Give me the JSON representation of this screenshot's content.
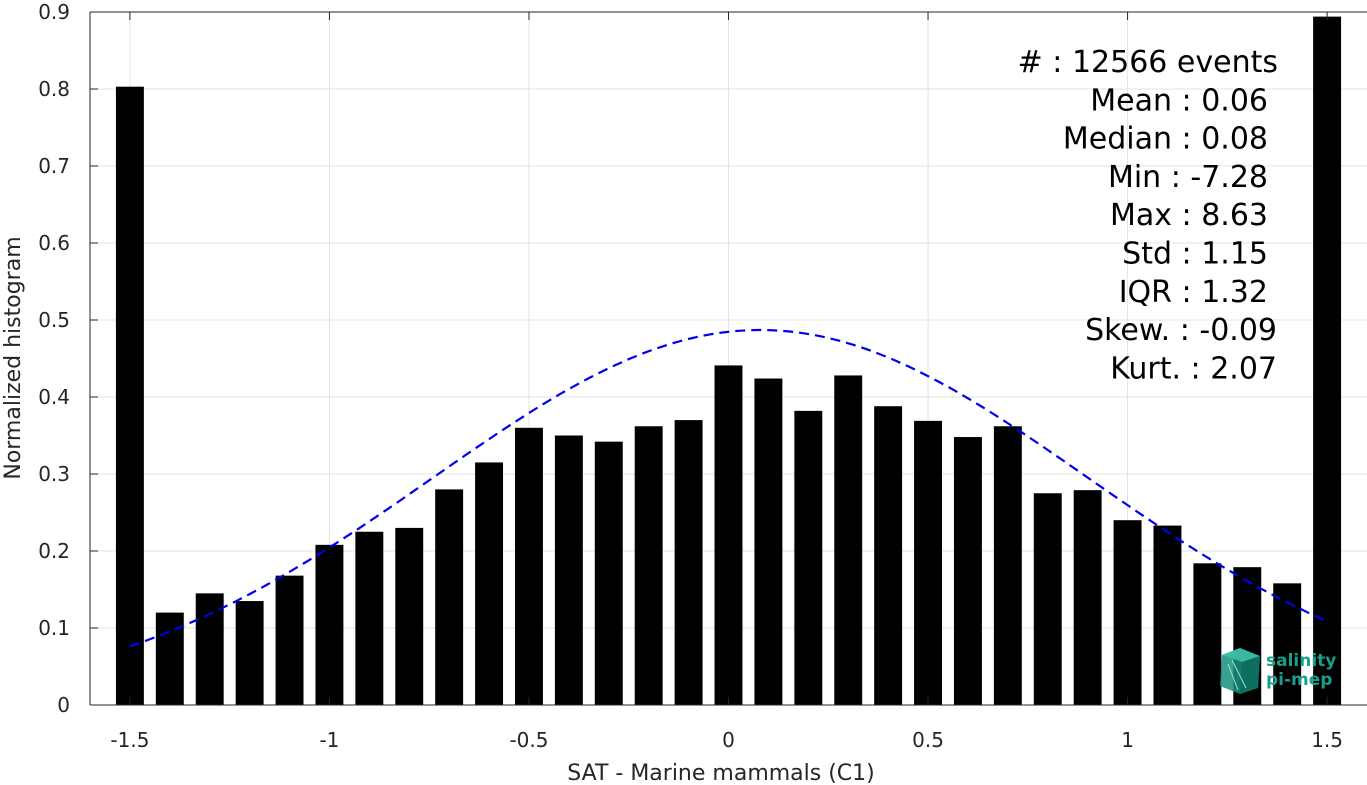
{
  "chart_data": {
    "type": "bar",
    "xlabel": "SAT - Marine mammals (C1)",
    "ylabel": "Normalized histogram",
    "xlim": [
      -1.6,
      1.6
    ],
    "ylim": [
      0,
      0.9
    ],
    "x_ticks": [
      -1.5,
      -1,
      -0.5,
      0,
      0.5,
      1,
      1.5
    ],
    "x_tick_labels": [
      "-1.5",
      "-1",
      "-0.5",
      "0",
      "0.5",
      "1",
      "1.5"
    ],
    "y_ticks": [
      0,
      0.1,
      0.2,
      0.3,
      0.4,
      0.5,
      0.6,
      0.7,
      0.8,
      0.9
    ],
    "y_tick_labels": [
      "0",
      "0.1",
      "0.2",
      "0.3",
      "0.4",
      "0.5",
      "0.6",
      "0.7",
      "0.8",
      "0.9"
    ],
    "grid": true,
    "bar_color": "#000000",
    "bar_width": 0.07,
    "bars": [
      {
        "x": -1.5,
        "y": 0.803
      },
      {
        "x": -1.4,
        "y": 0.12
      },
      {
        "x": -1.3,
        "y": 0.145
      },
      {
        "x": -1.2,
        "y": 0.135
      },
      {
        "x": -1.1,
        "y": 0.168
      },
      {
        "x": -1.0,
        "y": 0.208
      },
      {
        "x": -0.9,
        "y": 0.225
      },
      {
        "x": -0.8,
        "y": 0.23
      },
      {
        "x": -0.7,
        "y": 0.28
      },
      {
        "x": -0.6,
        "y": 0.315
      },
      {
        "x": -0.5,
        "y": 0.36
      },
      {
        "x": -0.4,
        "y": 0.35
      },
      {
        "x": -0.3,
        "y": 0.342
      },
      {
        "x": -0.2,
        "y": 0.362
      },
      {
        "x": -0.1,
        "y": 0.37
      },
      {
        "x": 0.0,
        "y": 0.441
      },
      {
        "x": 0.1,
        "y": 0.424
      },
      {
        "x": 0.2,
        "y": 0.382
      },
      {
        "x": 0.3,
        "y": 0.428
      },
      {
        "x": 0.4,
        "y": 0.388
      },
      {
        "x": 0.5,
        "y": 0.369
      },
      {
        "x": 0.6,
        "y": 0.348
      },
      {
        "x": 0.7,
        "y": 0.362
      },
      {
        "x": 0.8,
        "y": 0.275
      },
      {
        "x": 0.9,
        "y": 0.279
      },
      {
        "x": 1.0,
        "y": 0.24
      },
      {
        "x": 1.1,
        "y": 0.233
      },
      {
        "x": 1.2,
        "y": 0.184
      },
      {
        "x": 1.3,
        "y": 0.179
      },
      {
        "x": 1.4,
        "y": 0.158
      },
      {
        "x": 1.5,
        "y": 0.894
      }
    ],
    "fit_curve": {
      "type": "gaussian",
      "style": "dashed",
      "color": "#0000ee",
      "mean": 0.08,
      "std": 0.82,
      "peak": 0.487,
      "x_range": [
        -1.5,
        1.5
      ]
    },
    "stats": [
      {
        "label": "#  : 12566 events"
      },
      {
        "label": "Mean : 0.06"
      },
      {
        "label": "Median : 0.08"
      },
      {
        "label": "Min : -7.28"
      },
      {
        "label": "Max : 8.63"
      },
      {
        "label": "Std : 1.15"
      },
      {
        "label": "IQR : 1.32"
      },
      {
        "label": "Skew. : -0.09"
      },
      {
        "label": "Kurt. : 2.07"
      }
    ]
  },
  "logo": {
    "line1": "salinity",
    "line2": "pi-mep",
    "color": "#19a08a"
  }
}
